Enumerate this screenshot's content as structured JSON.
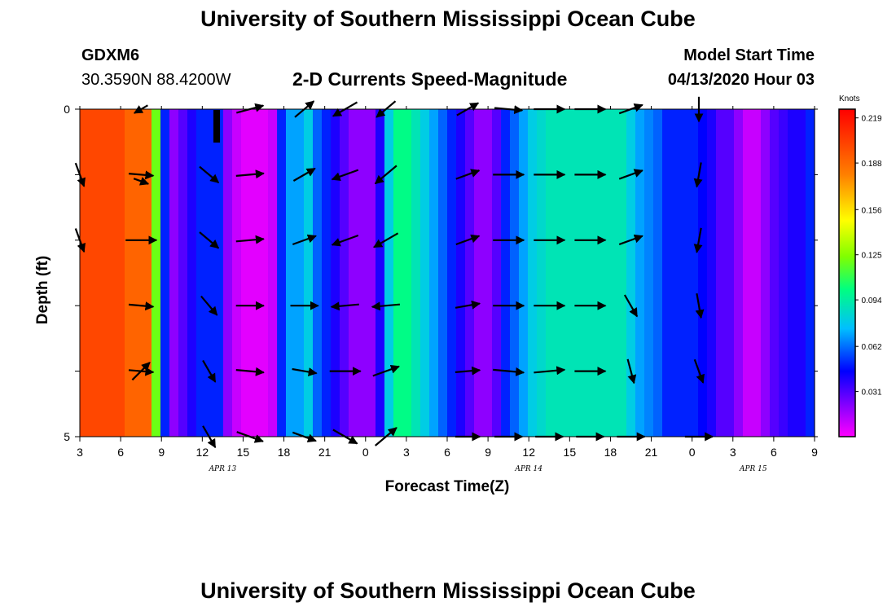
{
  "header": {
    "title": "University of Southern Mississippi Ocean Cube",
    "station": "GDXM6",
    "coords": "30.3590N 88.4200W",
    "chart_title": "2-D Currents Speed-Magnitude",
    "model_start_label": "Model Start Time",
    "model_start_value": "04/13/2020 Hour 03"
  },
  "footer": {
    "title": "University of Southern Mississippi Ocean Cube"
  },
  "chart_data": {
    "type": "heatmap",
    "title": "2-D Currents Speed-Magnitude",
    "xlabel": "Forecast Time(Z)",
    "ylabel": "Depth (ft)",
    "x_tick_labels": [
      "3",
      "6",
      "9",
      "12",
      "15",
      "18",
      "21",
      "0",
      "3",
      "6",
      "9",
      "12",
      "15",
      "18",
      "21",
      "0",
      "3",
      "6",
      "9"
    ],
    "x_hours_range": [
      0,
      54
    ],
    "y_tick_labels": [
      "0",
      "",
      "",
      "",
      "",
      "5"
    ],
    "ylim": [
      0,
      5
    ],
    "day_labels": [
      {
        "text": "APR 13",
        "hour": 10.5
      },
      {
        "text": "APR 14",
        "hour": 33
      },
      {
        "text": "APR 15",
        "hour": 49.5
      }
    ],
    "colorbar": {
      "unit": "Knots",
      "ticks": [
        "0.219",
        "0.188",
        "0.156",
        "0.125",
        "0.094",
        "0.062",
        "0.031"
      ],
      "vmin": 0.0,
      "vmax": 0.225
    },
    "speed_columns": [
      0.2,
      0.2,
      0.2,
      0.2,
      0.2,
      0.19,
      0.19,
      0.19,
      0.12,
      0.05,
      0.02,
      0.03,
      0.04,
      0.05,
      0.05,
      0.05,
      0.02,
      0.01,
      0.005,
      0.005,
      0.005,
      0.01,
      0.05,
      0.07,
      0.07,
      0.08,
      0.06,
      0.05,
      0.04,
      0.03,
      0.02,
      0.02,
      0.02,
      0.04,
      0.08,
      0.1,
      0.1,
      0.09,
      0.08,
      0.07,
      0.06,
      0.05,
      0.04,
      0.03,
      0.02,
      0.02,
      0.03,
      0.05,
      0.06,
      0.07,
      0.08,
      0.085,
      0.09,
      0.09,
      0.09,
      0.09,
      0.09,
      0.09,
      0.09,
      0.09,
      0.09,
      0.08,
      0.07,
      0.065,
      0.06,
      0.05,
      0.05,
      0.05,
      0.05,
      0.045,
      0.04,
      0.03,
      0.03,
      0.02,
      0.01,
      0.01,
      0.02,
      0.03,
      0.035,
      0.04,
      0.04,
      0.05
    ],
    "speed_column_hours": [
      0,
      54
    ],
    "vectors": [
      {
        "hour": 0,
        "row": 1,
        "angle": -70,
        "len": 0.8
      },
      {
        "hour": 0,
        "row": 2,
        "angle": -70,
        "len": 0.8
      },
      {
        "hour": 4.5,
        "row": 0,
        "angle": -150,
        "len": 0.5
      },
      {
        "hour": 4.5,
        "row": 1,
        "angle": -5,
        "len": 0.8
      },
      {
        "hour": 4.5,
        "row": 1.1,
        "angle": -20,
        "len": 0.5
      },
      {
        "hour": 4.5,
        "row": 2,
        "angle": 0,
        "len": 1.0
      },
      {
        "hour": 4.5,
        "row": 3,
        "angle": -5,
        "len": 0.8
      },
      {
        "hour": 4.5,
        "row": 4,
        "angle": 45,
        "len": 0.8
      },
      {
        "hour": 4.5,
        "row": 4.0,
        "angle": -5,
        "len": 0.8
      },
      {
        "hour": 9.5,
        "row": 1,
        "angle": -40,
        "len": 0.8
      },
      {
        "hour": 9.5,
        "row": 2,
        "angle": -40,
        "len": 0.8
      },
      {
        "hour": 9.5,
        "row": 3,
        "angle": -50,
        "len": 0.8
      },
      {
        "hour": 9.5,
        "row": 4,
        "angle": -60,
        "len": 0.8
      },
      {
        "hour": 9.5,
        "row": 5,
        "angle": -60,
        "len": 0.8
      },
      {
        "hour": 12.5,
        "row": 0,
        "angle": 15,
        "len": 0.9
      },
      {
        "hour": 12.5,
        "row": 1,
        "angle": 5,
        "len": 0.9
      },
      {
        "hour": 12.5,
        "row": 2,
        "angle": 5,
        "len": 0.9
      },
      {
        "hour": 12.5,
        "row": 3,
        "angle": 0,
        "len": 0.9
      },
      {
        "hour": 12.5,
        "row": 4,
        "angle": -5,
        "len": 0.9
      },
      {
        "hour": 12.5,
        "row": 5,
        "angle": -20,
        "len": 0.9
      },
      {
        "hour": 16.5,
        "row": 0,
        "angle": 40,
        "len": 0.8
      },
      {
        "hour": 16.5,
        "row": 1,
        "angle": 30,
        "len": 0.8
      },
      {
        "hour": 16.5,
        "row": 2,
        "angle": 20,
        "len": 0.8
      },
      {
        "hour": 16.5,
        "row": 3,
        "angle": 0,
        "len": 0.9
      },
      {
        "hour": 16.5,
        "row": 4,
        "angle": -10,
        "len": 0.8
      },
      {
        "hour": 16.5,
        "row": 5,
        "angle": -20,
        "len": 0.8
      },
      {
        "hour": 19.5,
        "row": 0,
        "angle": -150,
        "len": 0.9
      },
      {
        "hour": 19.5,
        "row": 1,
        "angle": -160,
        "len": 0.9
      },
      {
        "hour": 19.5,
        "row": 2,
        "angle": -160,
        "len": 0.9
      },
      {
        "hour": 19.5,
        "row": 3,
        "angle": -175,
        "len": 0.9
      },
      {
        "hour": 19.5,
        "row": 4,
        "angle": 0,
        "len": 1.0
      },
      {
        "hour": 19.5,
        "row": 5,
        "angle": -30,
        "len": 0.9
      },
      {
        "hour": 22.5,
        "row": 0,
        "angle": -140,
        "len": 0.8
      },
      {
        "hour": 22.5,
        "row": 1,
        "angle": -140,
        "len": 0.9
      },
      {
        "hour": 22.5,
        "row": 2,
        "angle": -150,
        "len": 0.9
      },
      {
        "hour": 22.5,
        "row": 3,
        "angle": -175,
        "len": 0.9
      },
      {
        "hour": 22.5,
        "row": 4,
        "angle": 20,
        "len": 0.9
      },
      {
        "hour": 22.5,
        "row": 5,
        "angle": 40,
        "len": 0.9
      },
      {
        "hour": 28.5,
        "row": 0,
        "angle": 30,
        "len": 0.8
      },
      {
        "hour": 28.5,
        "row": 1,
        "angle": 20,
        "len": 0.8
      },
      {
        "hour": 28.5,
        "row": 2,
        "angle": 20,
        "len": 0.8
      },
      {
        "hour": 28.5,
        "row": 3,
        "angle": 10,
        "len": 0.8
      },
      {
        "hour": 28.5,
        "row": 4,
        "angle": 5,
        "len": 0.8
      },
      {
        "hour": 28.5,
        "row": 5,
        "angle": 0,
        "len": 0.8
      },
      {
        "hour": 31.5,
        "row": 0,
        "angle": -5,
        "len": 0.9
      },
      {
        "hour": 31.5,
        "row": 1,
        "angle": 0,
        "len": 1.0
      },
      {
        "hour": 31.5,
        "row": 2,
        "angle": 0,
        "len": 1.0
      },
      {
        "hour": 31.5,
        "row": 3,
        "angle": 0,
        "len": 1.0
      },
      {
        "hour": 31.5,
        "row": 4,
        "angle": -5,
        "len": 1.0
      },
      {
        "hour": 31.5,
        "row": 5,
        "angle": 0,
        "len": 0.9
      },
      {
        "hour": 34.5,
        "row": 0,
        "angle": 0,
        "len": 1.0
      },
      {
        "hour": 34.5,
        "row": 1,
        "angle": 0,
        "len": 1.0
      },
      {
        "hour": 34.5,
        "row": 2,
        "angle": 0,
        "len": 1.0
      },
      {
        "hour": 34.5,
        "row": 3,
        "angle": 0,
        "len": 1.0
      },
      {
        "hour": 34.5,
        "row": 4,
        "angle": 5,
        "len": 1.0
      },
      {
        "hour": 34.5,
        "row": 5,
        "angle": 0,
        "len": 0.9
      },
      {
        "hour": 37.5,
        "row": 0,
        "angle": 0,
        "len": 1.0
      },
      {
        "hour": 37.5,
        "row": 1,
        "angle": 0,
        "len": 1.0
      },
      {
        "hour": 37.5,
        "row": 2,
        "angle": 0,
        "len": 1.0
      },
      {
        "hour": 37.5,
        "row": 3,
        "angle": 0,
        "len": 1.0
      },
      {
        "hour": 37.5,
        "row": 4,
        "angle": 0,
        "len": 1.0
      },
      {
        "hour": 37.5,
        "row": 5,
        "angle": 0,
        "len": 0.9
      },
      {
        "hour": 40.5,
        "row": 0,
        "angle": 20,
        "len": 0.8
      },
      {
        "hour": 40.5,
        "row": 1,
        "angle": 20,
        "len": 0.8
      },
      {
        "hour": 40.5,
        "row": 2,
        "angle": 20,
        "len": 0.8
      },
      {
        "hour": 40.5,
        "row": 3,
        "angle": -60,
        "len": 0.8
      },
      {
        "hour": 40.5,
        "row": 4,
        "angle": -75,
        "len": 0.8
      },
      {
        "hour": 40.5,
        "row": 5,
        "angle": 0,
        "len": 0.9
      },
      {
        "hour": 45.5,
        "row": 0,
        "angle": -90,
        "len": 0.8
      },
      {
        "hour": 45.5,
        "row": 1,
        "angle": -100,
        "len": 0.8
      },
      {
        "hour": 45.5,
        "row": 2,
        "angle": -100,
        "len": 0.8
      },
      {
        "hour": 45.5,
        "row": 3,
        "angle": -80,
        "len": 0.8
      },
      {
        "hour": 45.5,
        "row": 4,
        "angle": -70,
        "len": 0.8
      },
      {
        "hour": 45.5,
        "row": 5,
        "angle": 0,
        "len": 0.9
      }
    ]
  }
}
